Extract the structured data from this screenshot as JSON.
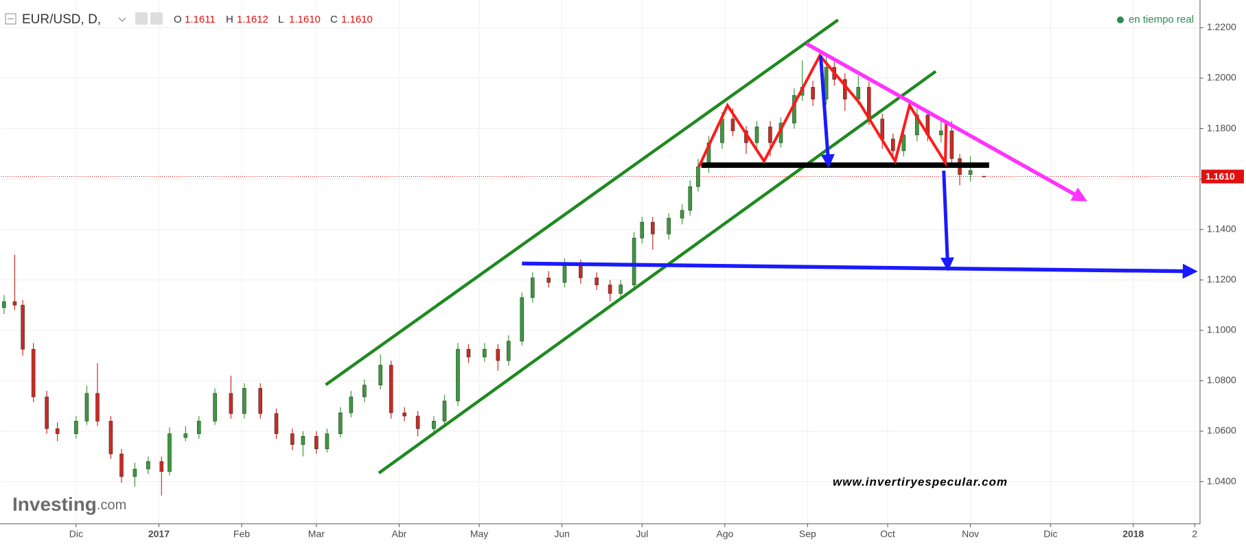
{
  "chart_data": {
    "type": "candlestick",
    "symbol": "EUR/USD, D,",
    "ohlc_header": [
      {
        "key": "O",
        "value": "1.1611"
      },
      {
        "key": "H",
        "value": "1.1612"
      },
      {
        "key": "L",
        "value": "1.1610"
      },
      {
        "key": "C",
        "value": "1.1610"
      }
    ],
    "status": "en tiempo real",
    "brand": "Investing",
    "brand_suffix": ".com",
    "watermark": "www.invertiryespecular.com",
    "up_color": "#3a9a3a",
    "down_color": "#cc2a22",
    "grid": true,
    "xlim": [
      2,
      451
    ],
    "ylim": [
      1.0233,
      1.231
    ],
    "xticks": [
      {
        "value": 30,
        "label": "Dic"
      },
      {
        "value": 61,
        "label": "2017"
      },
      {
        "value": 92,
        "label": "Feb"
      },
      {
        "value": 120,
        "label": "Mar"
      },
      {
        "value": 151,
        "label": "Abr"
      },
      {
        "value": 181,
        "label": "May"
      },
      {
        "value": 212,
        "label": "Jun"
      },
      {
        "value": 242,
        "label": "Jul"
      },
      {
        "value": 273,
        "label": "Ago"
      },
      {
        "value": 304,
        "label": "Sep"
      },
      {
        "value": 334,
        "label": "Oct"
      },
      {
        "value": 365,
        "label": "Nov"
      },
      {
        "value": 395,
        "label": "Dic"
      },
      {
        "value": 426,
        "label": "2018"
      },
      {
        "value": 449,
        "label": "2"
      }
    ],
    "yticks": [
      {
        "value": 1.04,
        "label": "1.0400"
      },
      {
        "value": 1.06,
        "label": "1.0600"
      },
      {
        "value": 1.08,
        "label": "1.0800"
      },
      {
        "value": 1.1,
        "label": "1.1000"
      },
      {
        "value": 1.12,
        "label": "1.1200"
      },
      {
        "value": 1.14,
        "label": "1.1400"
      },
      {
        "value": 1.16,
        "label": "1.1600"
      },
      {
        "value": 1.18,
        "label": "1.1800"
      },
      {
        "value": 1.2,
        "label": "1.2000"
      },
      {
        "value": 1.22,
        "label": "1.2200"
      }
    ],
    "last_price": {
      "value": 1.161,
      "label": "1.1610"
    },
    "x": [
      3,
      7,
      10,
      14,
      19,
      23,
      30,
      34,
      38,
      43,
      47,
      52,
      57,
      62,
      65,
      71,
      76,
      82,
      88,
      93,
      99,
      105,
      111,
      115,
      120,
      124,
      129,
      133,
      138,
      144,
      148,
      153,
      158,
      164,
      168,
      173,
      177,
      183,
      188,
      192,
      197,
      201,
      207,
      213,
      219,
      225,
      230,
      234,
      239,
      242,
      246,
      252,
      257,
      260,
      263,
      267,
      272,
      276,
      281,
      285,
      290,
      294,
      299,
      302,
      306,
      311,
      314,
      318,
      323,
      327,
      332,
      336,
      340,
      345,
      349,
      354,
      358,
      361,
      365,
      370
    ],
    "open": [
      1.109,
      1.1114,
      1.11,
      1.0925,
      1.0736,
      1.061,
      1.059,
      1.064,
      1.075,
      1.064,
      1.051,
      1.042,
      1.045,
      1.048,
      1.044,
      1.0575,
      1.059,
      1.064,
      1.075,
      1.067,
      1.077,
      1.067,
      1.059,
      1.0547,
      1.058,
      1.053,
      1.059,
      1.0673,
      1.0736,
      1.0783,
      1.0862,
      1.0673,
      1.066,
      1.061,
      1.064,
      1.072,
      1.0925,
      1.0894,
      1.0925,
      1.088,
      1.0957,
      1.113,
      1.1208,
      1.119,
      1.1256,
      1.1208,
      1.118,
      1.1146,
      1.118,
      1.1366,
      1.1429,
      1.1382,
      1.1445,
      1.1476,
      1.157,
      1.1649,
      1.1744,
      1.1838,
      1.1791,
      1.1744,
      1.1807,
      1.1744,
      1.1822,
      1.1932,
      1.1964,
      1.1917,
      1.2043,
      1.1995,
      1.1917,
      1.1964,
      1.1838,
      1.1759,
      1.1712,
      1.1775,
      1.1854,
      1.1775,
      1.1791,
      1.1681,
      1.1618,
      1.1611
    ],
    "high": [
      1.114,
      1.13,
      1.112,
      1.095,
      1.076,
      1.0635,
      1.066,
      1.078,
      1.087,
      1.066,
      1.053,
      1.0475,
      1.05,
      1.05,
      1.0615,
      1.062,
      1.066,
      1.077,
      1.082,
      1.079,
      1.079,
      1.069,
      1.061,
      1.06,
      1.06,
      1.061,
      1.0695,
      1.076,
      1.0805,
      1.0905,
      1.088,
      1.0695,
      1.068,
      1.066,
      1.0745,
      1.095,
      1.0945,
      1.095,
      1.0945,
      1.098,
      1.115,
      1.123,
      1.1235,
      1.1285,
      1.128,
      1.123,
      1.12,
      1.12,
      1.139,
      1.145,
      1.145,
      1.1465,
      1.15,
      1.1595,
      1.168,
      1.177,
      1.1865,
      1.188,
      1.181,
      1.183,
      1.183,
      1.1845,
      1.196,
      1.207,
      1.199,
      1.209,
      1.2065,
      1.202,
      1.201,
      1.1985,
      1.186,
      1.178,
      1.18,
      1.188,
      1.187,
      1.183,
      1.183,
      1.17,
      1.169,
      1.1612
    ],
    "low": [
      1.1065,
      1.108,
      1.09,
      1.0715,
      1.059,
      1.056,
      1.057,
      1.0625,
      1.062,
      1.049,
      1.0395,
      1.038,
      1.043,
      1.0345,
      1.0425,
      1.056,
      1.057,
      1.0625,
      1.065,
      1.065,
      1.065,
      1.057,
      1.0525,
      1.05,
      1.051,
      1.0515,
      1.0575,
      1.0655,
      1.0715,
      1.0765,
      1.065,
      1.064,
      1.058,
      1.059,
      1.062,
      1.07,
      1.087,
      1.0875,
      1.084,
      1.086,
      1.094,
      1.111,
      1.117,
      1.117,
      1.1185,
      1.116,
      1.1115,
      1.1125,
      1.116,
      1.1345,
      1.132,
      1.136,
      1.142,
      1.1455,
      1.155,
      1.1625,
      1.172,
      1.177,
      1.17,
      1.172,
      1.169,
      1.1725,
      1.18,
      1.191,
      1.189,
      1.1895,
      1.197,
      1.187,
      1.1895,
      1.1815,
      1.172,
      1.169,
      1.169,
      1.175,
      1.175,
      1.1745,
      1.166,
      1.1575,
      1.159,
      1.161
    ],
    "close": [
      1.1114,
      1.11,
      1.0925,
      1.0736,
      1.061,
      1.059,
      1.064,
      1.075,
      1.064,
      1.051,
      1.042,
      1.045,
      1.048,
      1.044,
      1.059,
      1.059,
      1.064,
      1.075,
      1.067,
      1.077,
      1.067,
      1.059,
      1.0547,
      1.058,
      1.053,
      1.059,
      1.0673,
      1.0736,
      1.0783,
      1.0862,
      1.0673,
      1.066,
      1.061,
      1.064,
      1.072,
      1.0925,
      1.0894,
      1.0925,
      1.088,
      1.0957,
      1.113,
      1.1208,
      1.119,
      1.1256,
      1.1208,
      1.118,
      1.1146,
      1.118,
      1.1366,
      1.1429,
      1.1382,
      1.1445,
      1.1476,
      1.157,
      1.1649,
      1.1744,
      1.1838,
      1.1791,
      1.1744,
      1.1807,
      1.1744,
      1.1822,
      1.1932,
      1.1964,
      1.1917,
      1.2043,
      1.1995,
      1.1917,
      1.1964,
      1.1838,
      1.1759,
      1.1712,
      1.1775,
      1.1854,
      1.1775,
      1.1791,
      1.1681,
      1.1618,
      1.1634,
      1.161
    ],
    "drawings": [
      {
        "kind": "channel-upper",
        "color": "#1f8a1f",
        "points": [
          [
            123.5,
            1.0784
          ],
          [
            315.4,
            1.2231
          ]
        ]
      },
      {
        "kind": "channel-lower",
        "color": "#1f8a1f",
        "points": [
          [
            143.4,
            1.0434
          ],
          [
            352,
            1.2027
          ]
        ]
      },
      {
        "kind": "target-line",
        "color": "#1a1aff",
        "points": [
          [
            197,
            1.1265
          ],
          [
            447.9,
            1.1234
          ]
        ],
        "arrow": true
      },
      {
        "kind": "neckline",
        "color": "#000000",
        "points": [
          [
            264.2,
            1.1655
          ],
          [
            372,
            1.1655
          ]
        ]
      },
      {
        "kind": "pattern",
        "color": "#ff1a1a",
        "points": [
          [
            263.3,
            1.1649
          ],
          [
            274,
            1.1892
          ],
          [
            287.7,
            1.1671
          ],
          [
            308.6,
            1.209
          ],
          [
            323.5,
            1.1901
          ],
          [
            336.8,
            1.1671
          ],
          [
            342.2,
            1.1892
          ],
          [
            355.6,
            1.1665
          ],
          [
            355.9,
            1.1832
          ]
        ]
      },
      {
        "kind": "trend-down",
        "color": "#ff33ff",
        "points": [
          [
            303.5,
            1.2137
          ],
          [
            406.8,
            1.1523
          ]
        ],
        "arrow": true
      },
      {
        "kind": "measure",
        "color": "#1a1aff",
        "points": [
          [
            308.9,
            1.209
          ],
          [
            311.8,
            1.1665
          ]
        ],
        "arrow": true
      },
      {
        "kind": "measure",
        "color": "#1a1aff",
        "points": [
          [
            355,
            1.1633
          ],
          [
            356.5,
            1.1256
          ]
        ],
        "arrow": true
      }
    ]
  }
}
